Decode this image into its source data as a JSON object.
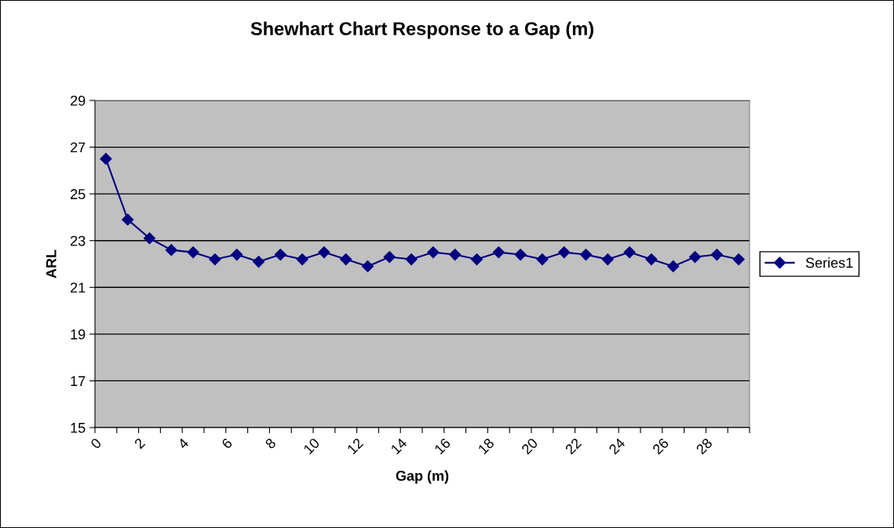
{
  "chart_data": {
    "type": "line",
    "title": "Shewhart Chart Response to a Gap (m)",
    "xlabel": "Gap (m)",
    "ylabel": "ARL",
    "x": [
      0.5,
      1.5,
      2.5,
      3.5,
      4.5,
      5.5,
      6.5,
      7.5,
      8.5,
      9.5,
      10.5,
      11.5,
      12.5,
      13.5,
      14.5,
      15.5,
      16.5,
      17.5,
      18.5,
      19.5,
      20.5,
      21.5,
      22.5,
      23.5,
      24.5,
      25.5,
      26.5,
      27.5,
      28.5,
      29.5
    ],
    "series": [
      {
        "name": "Series1",
        "color": "#000080",
        "values": [
          26.5,
          23.9,
          23.1,
          22.6,
          22.5,
          22.2,
          22.4,
          22.1,
          22.4,
          22.2,
          22.5,
          22.2,
          21.9,
          22.3,
          22.2,
          22.5,
          22.4,
          22.2,
          22.5,
          22.4,
          22.2,
          22.5,
          22.4,
          22.2,
          22.5,
          22.2,
          21.9,
          22.3,
          22.4,
          22.2
        ]
      }
    ],
    "xlim": [
      0,
      30
    ],
    "xticks": [
      0,
      {
        "value": 1,
        "label": null
      },
      2,
      {
        "value": 3,
        "label": null
      },
      4,
      {
        "value": 5,
        "label": null
      },
      6,
      {
        "value": 7,
        "label": null
      },
      8,
      {
        "value": 9,
        "label": null
      },
      10,
      {
        "value": 11,
        "label": null
      },
      12,
      {
        "value": 13,
        "label": null
      },
      14,
      {
        "value": 15,
        "label": null
      },
      16,
      {
        "value": 17,
        "label": null
      },
      18,
      {
        "value": 19,
        "label": null
      },
      20,
      {
        "value": 21,
        "label": null
      },
      22,
      {
        "value": 23,
        "label": null
      },
      24,
      {
        "value": 25,
        "label": null
      },
      26,
      {
        "value": 27,
        "label": null
      },
      28,
      {
        "value": 29,
        "label": null
      },
      {
        "value": 30,
        "label": null
      }
    ],
    "ylim": [
      15,
      29
    ],
    "yticks": [
      15,
      17,
      19,
      21,
      23,
      25,
      27,
      29
    ],
    "grid": "y",
    "legend": "right",
    "marker": "diamond",
    "line_style": "solid"
  }
}
